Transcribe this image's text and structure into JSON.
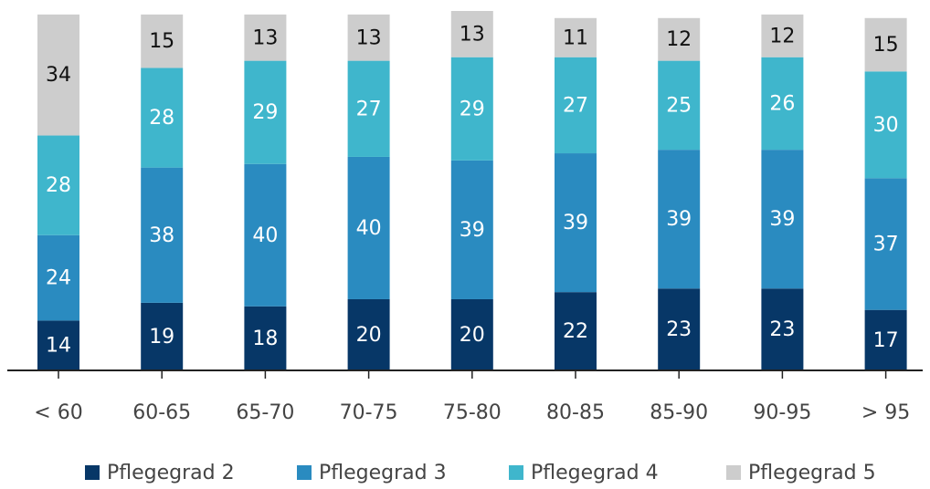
{
  "chart_data": {
    "type": "stacked_bar",
    "categories": [
      "< 60",
      "60-65",
      "65-70",
      "70-75",
      "75-80",
      "80-85",
      "85-90",
      "90-95",
      "> 95"
    ],
    "series": [
      {
        "name": "Pflegegrad 2",
        "color": "#073767",
        "values": [
          14,
          19,
          18,
          20,
          20,
          22,
          23,
          23,
          17
        ]
      },
      {
        "name": "Pflegegrad 3",
        "color": "#2a8bc0",
        "values": [
          24,
          38,
          40,
          40,
          39,
          39,
          39,
          39,
          37
        ]
      },
      {
        "name": "Pflegegrad 4",
        "color": "#3fb6cc",
        "values": [
          28,
          28,
          29,
          27,
          29,
          27,
          25,
          26,
          30
        ]
      },
      {
        "name": "Pflegegrad 5",
        "color": "#cdcdcd",
        "values": [
          34,
          15,
          13,
          13,
          13,
          11,
          12,
          12,
          15
        ]
      }
    ]
  }
}
